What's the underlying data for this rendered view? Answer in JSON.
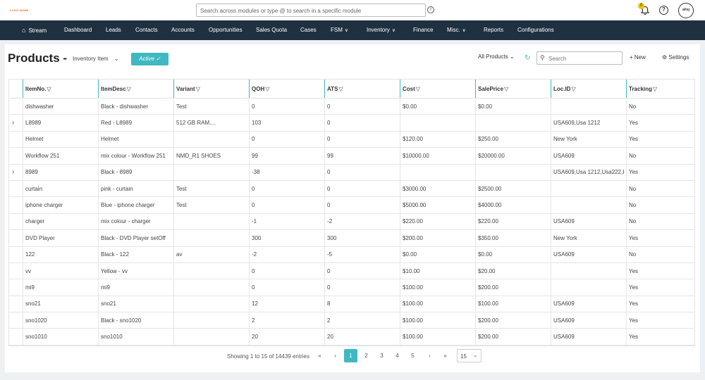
{
  "app": {
    "logo_text": "LOGO NAME",
    "search_placeholder": "Search across modules or type @ to search in a specific module",
    "notification_count": "0",
    "help_label": "?",
    "avatar_text": "ahsj"
  },
  "nav": [
    {
      "label": "Stream",
      "icon": "home-icon"
    },
    {
      "label": "Dashboard"
    },
    {
      "label": "Leads"
    },
    {
      "label": "Contacts"
    },
    {
      "label": "Accounts"
    },
    {
      "label": "Opportunities"
    },
    {
      "label": "Sales Quota"
    },
    {
      "label": "Cases"
    },
    {
      "label": "FSM",
      "dropdown": true
    },
    {
      "label": "Inventory",
      "dropdown": true
    },
    {
      "label": "Finance"
    },
    {
      "label": "Misc.",
      "dropdown": true
    },
    {
      "label": "Reports"
    },
    {
      "label": "Configurations"
    }
  ],
  "header": {
    "title": "Products -",
    "type_selected": "Inventory Item",
    "active_label": "Active",
    "view_selected": "All Products",
    "search_placeholder": "Search",
    "new_label": "New",
    "settings_label": "Settings"
  },
  "table": {
    "columns": [
      "ItemNo.",
      "ItemDesc",
      "Variant",
      "QOH",
      "ATS",
      "Cost",
      "SalePrice",
      "Loc.ID",
      "Tracking"
    ],
    "rows": [
      {
        "expand": false,
        "cells": [
          "dishwasher",
          "Black - dishwasher",
          "Test",
          "0",
          "0",
          "$0.00",
          "$0.00",
          "",
          "No"
        ]
      },
      {
        "expand": true,
        "cells": [
          "L8989",
          "Red - L8989",
          "512 GB RAM....",
          "103",
          "0",
          "",
          "",
          "USA609,Usa 1212",
          "Yes"
        ]
      },
      {
        "expand": false,
        "cells": [
          "Helmet",
          "Helmet",
          "",
          "0",
          "0",
          "$120.00",
          "$250.00",
          "New York",
          "Yes"
        ]
      },
      {
        "expand": false,
        "cells": [
          "Workflow 251",
          "mix colour - Workflow 251",
          "NMD_R1 SHOES",
          "99",
          "99",
          "$10000.00",
          "$20000.00",
          "USA609",
          "No"
        ]
      },
      {
        "expand": true,
        "cells": [
          "8989",
          "Black - 8989",
          "",
          "-38",
          "0",
          "",
          "",
          "USA609,Usa 1212,Usa222,I",
          "Yes"
        ]
      },
      {
        "expand": false,
        "cells": [
          "curtain",
          "pink - curtain",
          "Test",
          "0",
          "0",
          "$3000.00",
          "$2500.00",
          "",
          "No"
        ]
      },
      {
        "expand": false,
        "cells": [
          "iphone charger",
          "Blue - iphone charger",
          "Test",
          "0",
          "0",
          "$5000.00",
          "$4000.00",
          "",
          "No"
        ]
      },
      {
        "expand": false,
        "cells": [
          "charger",
          "mix colour - charger",
          "",
          "-1",
          "-2",
          "$220.00",
          "$220.00",
          "USA609",
          "No"
        ]
      },
      {
        "expand": false,
        "cells": [
          "DVD Player",
          "Black - DVD Player setOff",
          "",
          "300",
          "300",
          "$200.00",
          "$350.00",
          "New York",
          "Yes"
        ]
      },
      {
        "expand": false,
        "cells": [
          "122",
          "Black - 122",
          "av",
          "-2",
          "-5",
          "$0.00",
          "$0.00",
          "USA609",
          "No"
        ]
      },
      {
        "expand": false,
        "cells": [
          "vv",
          "Yellow - vv",
          "",
          "0",
          "0",
          "$10.00",
          "$20.00",
          "",
          "Yes"
        ]
      },
      {
        "expand": false,
        "cells": [
          "mi9",
          "mi9",
          "",
          "0",
          "0",
          "$100.00",
          "$200.00",
          "",
          "Yes"
        ]
      },
      {
        "expand": false,
        "cells": [
          "sno21",
          "sno21",
          "",
          "12",
          "8",
          "$100.00",
          "$100.00",
          "USA609",
          "Yes"
        ]
      },
      {
        "expand": false,
        "cells": [
          "sno1020",
          "Black - sno1020",
          "",
          "2",
          "2",
          "$100.00",
          "$200.00",
          "USA609",
          "Yes"
        ]
      },
      {
        "expand": false,
        "cells": [
          "sno1010",
          "sno1010",
          "",
          "20",
          "20",
          "$100.00",
          "$200.00",
          "USA609",
          "Yes"
        ]
      }
    ]
  },
  "pagination": {
    "showing": "Showing 1 to 15 of 14439 entries",
    "first": "«",
    "prev": "‹",
    "pages": [
      "1",
      "2",
      "3",
      "4",
      "5"
    ],
    "active_page": "1",
    "next": "›",
    "last": "»",
    "page_size": "15"
  },
  "colors": {
    "accent": "#3fb8c0",
    "nav_bg": "#1f3140"
  }
}
